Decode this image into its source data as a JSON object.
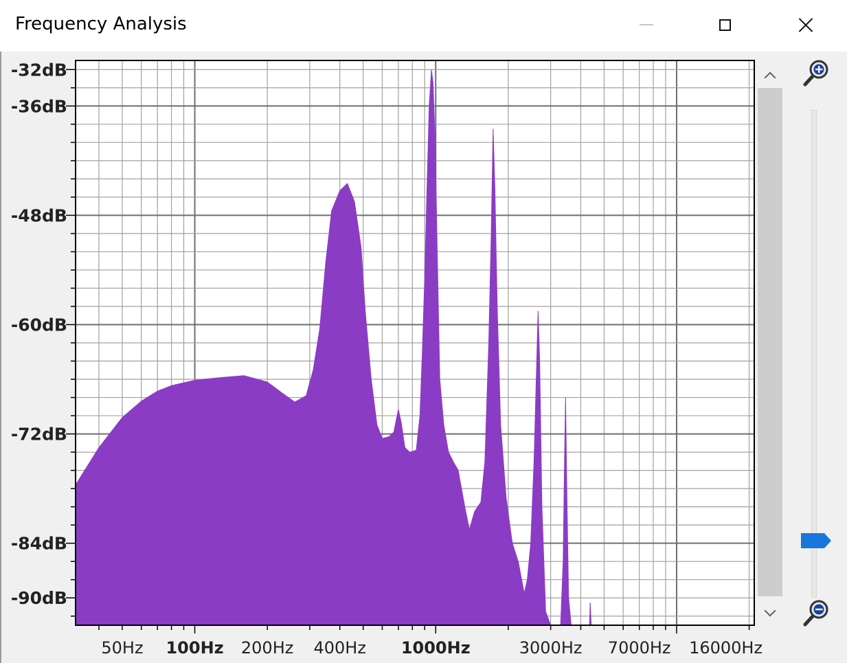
{
  "window": {
    "title": "Frequency Analysis",
    "controls": {
      "minimize": "minimize-icon",
      "maximize": "maximize-icon",
      "close": "close-icon"
    }
  },
  "colors": {
    "spectrum_fill": "#8b3cc4",
    "grid_line": "#a0a0a0",
    "plot_background": "#ffffff",
    "zoom_thumb": "#1877d8"
  },
  "chart_data": {
    "type": "area",
    "x_scale": "log",
    "xlim": [
      32,
      21000
    ],
    "ylim": [
      -93,
      -31
    ],
    "grid": true,
    "x_tick_labels": [
      {
        "value": 50,
        "label": "50Hz",
        "bold": false
      },
      {
        "value": 100,
        "label": "100Hz",
        "bold": true
      },
      {
        "value": 200,
        "label": "200Hz",
        "bold": false
      },
      {
        "value": 400,
        "label": "400Hz",
        "bold": false
      },
      {
        "value": 1000,
        "label": "1000Hz",
        "bold": true
      },
      {
        "value": 3000,
        "label": "3000Hz",
        "bold": false
      },
      {
        "value": 7000,
        "label": "7000Hz",
        "bold": false
      },
      {
        "value": 16000,
        "label": "16000Hz",
        "bold": false
      }
    ],
    "y_tick_labels": [
      {
        "value": -32,
        "label": "-32dB"
      },
      {
        "value": -36,
        "label": "-36dB"
      },
      {
        "value": -48,
        "label": "-48dB"
      },
      {
        "value": -60,
        "label": "-60dB"
      },
      {
        "value": -72,
        "label": "-72dB"
      },
      {
        "value": -84,
        "label": "-84dB"
      },
      {
        "value": -90,
        "label": "-90dB"
      }
    ],
    "x_major_grid": [
      100,
      1000,
      10000
    ],
    "x_minor_grid": [
      40,
      50,
      60,
      70,
      80,
      90,
      200,
      300,
      400,
      500,
      600,
      700,
      800,
      900,
      2000,
      3000,
      4000,
      5000,
      6000,
      7000,
      8000,
      9000,
      20000
    ],
    "y_major_grid": [
      -36,
      -48,
      -60,
      -72,
      -84
    ],
    "y_minor_grid": [
      -32,
      -34,
      -38,
      -40,
      -42,
      -44,
      -46,
      -50,
      -52,
      -54,
      -56,
      -58,
      -62,
      -64,
      -66,
      -68,
      -70,
      -74,
      -76,
      -78,
      -80,
      -82,
      -86,
      -88,
      -90,
      -92
    ],
    "series": [
      {
        "values": [
          [
            32,
            -77.6
          ],
          [
            40,
            -73.5
          ],
          [
            50,
            -70.2
          ],
          [
            60,
            -68.4
          ],
          [
            70,
            -67.3
          ],
          [
            80,
            -66.7
          ],
          [
            100,
            -66.1
          ],
          [
            130,
            -65.8
          ],
          [
            160,
            -65.6
          ],
          [
            200,
            -66.3
          ],
          [
            230,
            -67.5
          ],
          [
            260,
            -68.5
          ],
          [
            290,
            -67.8
          ],
          [
            310,
            -65.0
          ],
          [
            330,
            -60.5
          ],
          [
            350,
            -53.0
          ],
          [
            370,
            -47.5
          ],
          [
            400,
            -45.3
          ],
          [
            430,
            -44.5
          ],
          [
            460,
            -46.5
          ],
          [
            490,
            -51.5
          ],
          [
            510,
            -58.5
          ],
          [
            540,
            -66.0
          ],
          [
            570,
            -71.0
          ],
          [
            600,
            -72.5
          ],
          [
            640,
            -72.3
          ],
          [
            670,
            -71.8
          ],
          [
            700,
            -69.3
          ],
          [
            720,
            -70.8
          ],
          [
            745,
            -73.5
          ],
          [
            780,
            -74.0
          ],
          [
            830,
            -73.8
          ],
          [
            860,
            -70.0
          ],
          [
            880,
            -63.0
          ],
          [
            900,
            -55.0
          ],
          [
            920,
            -45.0
          ],
          [
            940,
            -36.0
          ],
          [
            960,
            -32.0
          ],
          [
            975,
            -33.5
          ],
          [
            995,
            -40.0
          ],
          [
            1015,
            -52.0
          ],
          [
            1040,
            -66.0
          ],
          [
            1080,
            -71.0
          ],
          [
            1130,
            -74.0
          ],
          [
            1180,
            -75.0
          ],
          [
            1240,
            -76.0
          ],
          [
            1320,
            -80.0
          ],
          [
            1380,
            -82.5
          ],
          [
            1450,
            -80.5
          ],
          [
            1540,
            -79.5
          ],
          [
            1600,
            -75.0
          ],
          [
            1660,
            -62.0
          ],
          [
            1700,
            -50.0
          ],
          [
            1730,
            -38.5
          ],
          [
            1760,
            -45.0
          ],
          [
            1800,
            -58.0
          ],
          [
            1860,
            -71.0
          ],
          [
            1960,
            -79.0
          ],
          [
            2080,
            -84.0
          ],
          [
            2200,
            -86.0
          ],
          [
            2330,
            -89.5
          ],
          [
            2400,
            -88.0
          ],
          [
            2480,
            -84.0
          ],
          [
            2560,
            -75.0
          ],
          [
            2620,
            -65.0
          ],
          [
            2660,
            -58.5
          ],
          [
            2700,
            -64.0
          ],
          [
            2760,
            -80.0
          ],
          [
            2860,
            -91.5
          ],
          [
            3000,
            -93.0
          ],
          [
            3300,
            -93.0
          ],
          [
            3380,
            -86.0
          ],
          [
            3420,
            -76.0
          ],
          [
            3460,
            -68.0
          ],
          [
            3500,
            -78.0
          ],
          [
            3560,
            -90.0
          ],
          [
            3650,
            -93.0
          ],
          [
            4350,
            -93.0
          ],
          [
            4380,
            -90.5
          ],
          [
            4420,
            -93.0
          ],
          [
            21000,
            -93.0
          ]
        ]
      }
    ]
  },
  "scrollbar": {
    "up_icon": "chevron-up-icon",
    "down_icon": "chevron-down-icon"
  },
  "zoom": {
    "zoom_in_icon": "zoom-in-icon",
    "zoom_out_icon": "zoom-out-icon",
    "level": 0.06
  }
}
